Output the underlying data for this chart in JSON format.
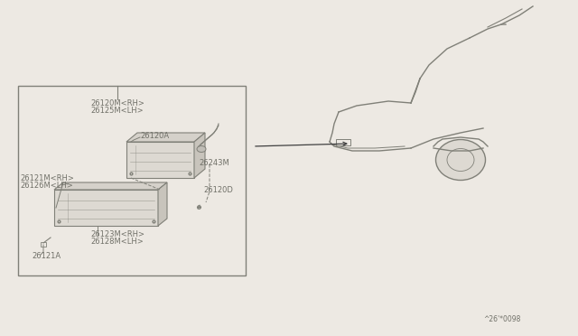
{
  "bg_color": "#ede9e3",
  "line_color": "#808078",
  "text_color": "#707068",
  "dark_color": "#404040",
  "part_number_code": "^26'*0098",
  "labels": {
    "main_rh": "26120M<RH>",
    "main_lh": "26125M<LH>",
    "housing": "26120A",
    "lens_rh": "26121M<RH>",
    "lens_lh": "26126M<LH>",
    "screw": "26121A",
    "seal_rh": "26123M<RH>",
    "seal_lh": "26128M<LH>",
    "socket": "26243M",
    "bulb": "26120D"
  }
}
